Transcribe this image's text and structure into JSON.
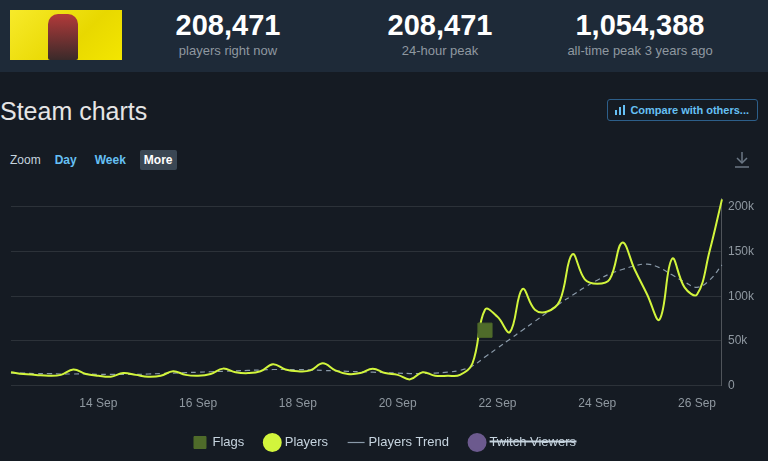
{
  "header": {
    "stats": [
      {
        "value": "208,471",
        "label": "players right now"
      },
      {
        "value": "208,471",
        "label": "24-hour peak"
      },
      {
        "value": "1,054,388",
        "label": "all-time peak 3 years ago"
      }
    ]
  },
  "controls": {
    "compare": "Compare with others...",
    "zoom_label": "Zoom",
    "zoom_options": [
      "Day",
      "Week",
      "More"
    ],
    "zoom_selected": "More"
  },
  "chart_data": {
    "type": "line",
    "title": "Steam charts",
    "categories": [
      null,
      null,
      null,
      null,
      null,
      null,
      null,
      "14 Sep",
      null,
      null,
      null,
      null,
      null,
      null,
      null,
      "16 Sep",
      null,
      null,
      null,
      null,
      null,
      null,
      null,
      "18 Sep",
      null,
      null,
      null,
      null,
      null,
      null,
      null,
      "20 Sep",
      null,
      null,
      null,
      null,
      null,
      null,
      null,
      "22 Sep",
      null,
      null,
      null,
      null,
      null,
      null,
      null,
      "24 Sep",
      null,
      null,
      null,
      null,
      null,
      null,
      null,
      "26 Sep",
      null,
      null
    ],
    "series": [
      {
        "name": "Players",
        "color": "#d2f53c",
        "marker": "circle",
        "line_style": "solid",
        "values": [
          15000,
          13000,
          12000,
          11000,
          12000,
          18000,
          13000,
          11000,
          10000,
          14000,
          12000,
          10000,
          11000,
          16000,
          12000,
          11000,
          13000,
          19000,
          15000,
          14000,
          16000,
          24000,
          18000,
          16000,
          17000,
          25000,
          17000,
          13000,
          14000,
          19000,
          14000,
          12000,
          7000,
          15000,
          11000,
          11000,
          12000,
          25000,
          85000,
          77000,
          60000,
          108000,
          85000,
          83000,
          95000,
          147000,
          119000,
          114000,
          119000,
          160000,
          130000,
          102000,
          74000,
          142000,
          110000,
          102000,
          150000,
          208471
        ]
      },
      {
        "name": "Players Trend",
        "color": "#8a9aa9",
        "marker": "line",
        "line_style": "dashed",
        "values": [
          14000,
          14000,
          13500,
          13500,
          13000,
          13000,
          13000,
          12500,
          12500,
          12500,
          12500,
          13000,
          13500,
          14000,
          14500,
          15000,
          15500,
          16000,
          16500,
          17000,
          17500,
          18000,
          18000,
          18000,
          17500,
          17000,
          16500,
          16000,
          15500,
          15000,
          14500,
          14000,
          13500,
          13500,
          14000,
          15000,
          17000,
          22000,
          32000,
          42000,
          52000,
          62000,
          72000,
          82000,
          92000,
          101000,
          110000,
          118000,
          125000,
          130000,
          134000,
          136000,
          132000,
          124000,
          116000,
          110000,
          118000,
          135000
        ]
      },
      {
        "name": "Twitch Viewers",
        "color": "#6c5a8e",
        "marker": "circle",
        "line_style": "solid",
        "values": [
          null,
          null,
          null,
          null,
          null,
          null,
          null,
          null,
          null,
          null,
          null,
          null,
          null,
          null,
          null,
          null,
          null,
          null,
          null,
          null,
          null,
          null,
          null,
          null,
          null,
          null,
          null,
          null,
          null,
          null,
          null,
          null,
          null,
          null,
          null,
          null,
          null,
          null,
          null,
          null,
          null,
          null,
          null,
          null,
          null,
          null,
          null,
          null,
          null,
          null,
          null,
          null,
          null,
          null,
          null,
          null,
          null,
          null
        ]
      },
      {
        "name": "Flags",
        "color": "#4f6b2a",
        "type": "scatter",
        "marker": "rect",
        "values": [
          null,
          null,
          null,
          null,
          null,
          null,
          null,
          null,
          null,
          null,
          null,
          null,
          null,
          null,
          null,
          null,
          null,
          null,
          null,
          null,
          null,
          null,
          null,
          null,
          null,
          null,
          null,
          null,
          null,
          null,
          null,
          null,
          null,
          null,
          null,
          null,
          null,
          null,
          62000,
          null,
          null,
          null,
          null,
          null,
          null,
          null,
          null,
          null,
          null,
          null,
          null,
          null,
          null,
          null,
          null,
          null,
          null,
          null
        ]
      }
    ],
    "ylim": [
      0,
      210000
    ],
    "yticks": [
      0,
      {
        "value": 50000,
        "label": "50k"
      },
      {
        "value": 100000,
        "label": "100k"
      },
      {
        "value": 150000,
        "label": "150k"
      },
      {
        "value": 200000,
        "label": "200k"
      }
    ],
    "grid": true,
    "legend": "bottom"
  }
}
